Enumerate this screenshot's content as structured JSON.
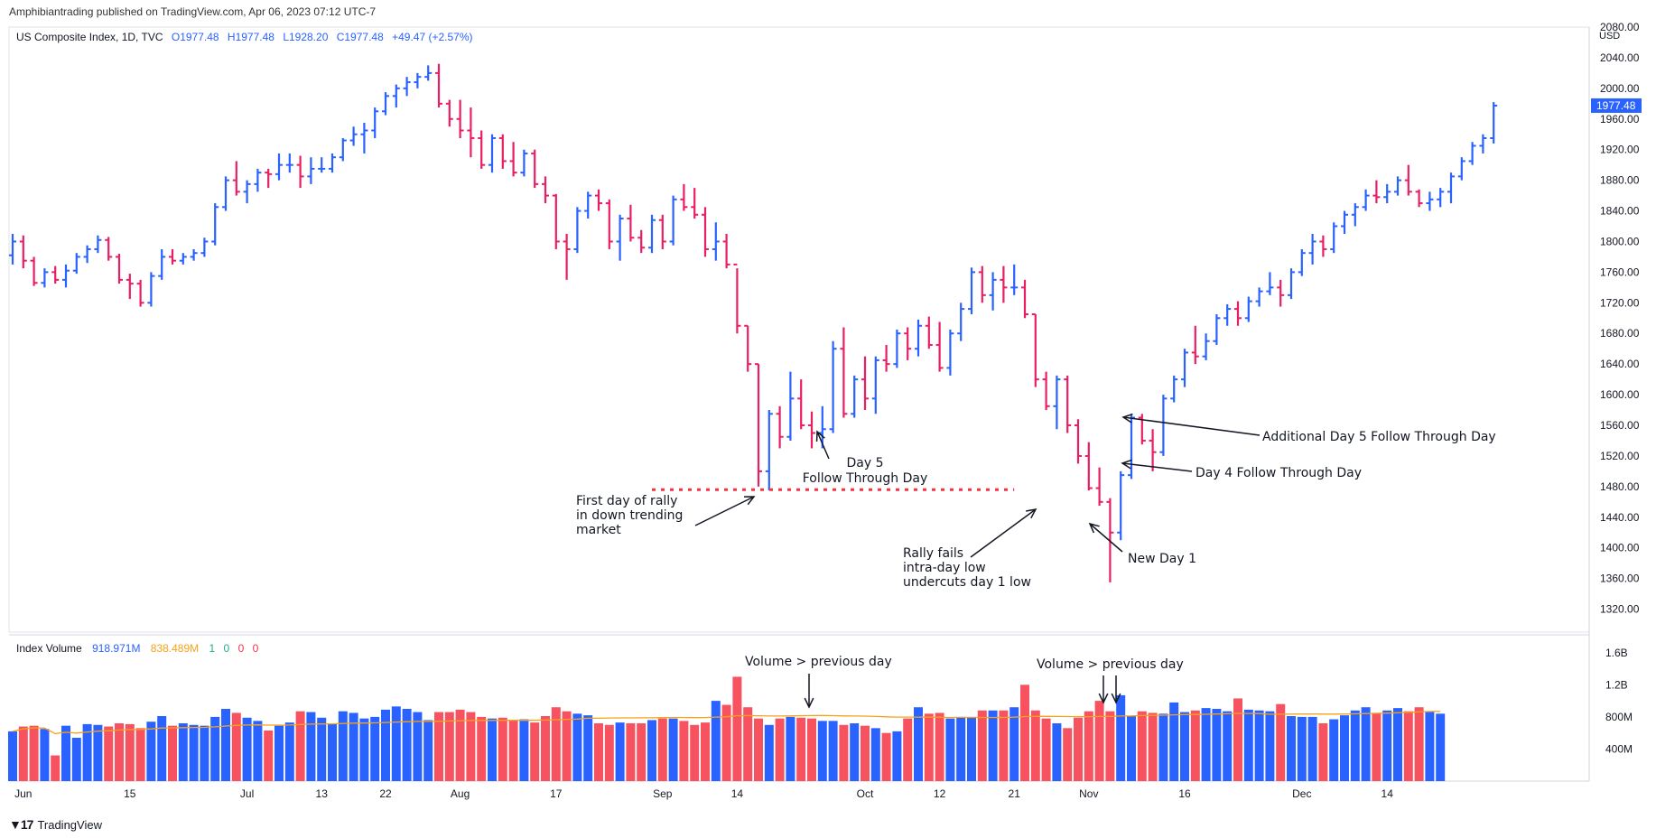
{
  "publisher_line": "Amphibiantrading published on TradingView.com, Apr 06, 2023 07:12 UTC-7",
  "legend": {
    "symbol": "US Composite Index, 1D, TVC",
    "open": "O1977.48",
    "high": "H1977.48",
    "low": "L1928.20",
    "close": "C1977.48",
    "change": "+49.47 (+2.57%)"
  },
  "volume_legend": {
    "name": "Index Volume",
    "value1": "918.971M",
    "value2": "838.489M",
    "v3": "1",
    "v4": "0",
    "v5": "0",
    "v6": "0"
  },
  "currency": "USD",
  "footer": {
    "brand": "TradingView",
    "logo": "tradingview-logo-icon"
  },
  "colors": {
    "up": "#2962ff",
    "down": "#e91e63",
    "vol_up": "#2962ff",
    "vol_down": "#f7525f",
    "ma": "#f7a21b",
    "dots": "#f23645"
  },
  "chart_data": {
    "type": "bar",
    "price_axis": {
      "ylim": [
        1290,
        2080
      ],
      "ticks": [
        2080,
        2040,
        2000,
        1960,
        1920,
        1880,
        1840,
        1800,
        1760,
        1720,
        1680,
        1640,
        1600,
        1560,
        1520,
        1480,
        1440,
        1400,
        1360,
        1320
      ],
      "last_price_label": "1977.48"
    },
    "volume_axis": {
      "ylim": [
        0,
        1800
      ],
      "ticks": [
        "1.6B",
        "1.2B",
        "800M",
        "400M"
      ],
      "tick_values": [
        1600,
        1200,
        800,
        400
      ]
    },
    "x_axis_labels": [
      {
        "label": "Jun",
        "index": 1
      },
      {
        "label": "15",
        "index": 11
      },
      {
        "label": "Jul",
        "index": 22
      },
      {
        "label": "13",
        "index": 29
      },
      {
        "label": "22",
        "index": 35
      },
      {
        "label": "Aug",
        "index": 42
      },
      {
        "label": "17",
        "index": 51
      },
      {
        "label": "Sep",
        "index": 61
      },
      {
        "label": "14",
        "index": 68
      },
      {
        "label": "Oct",
        "index": 80
      },
      {
        "label": "12",
        "index": 87
      },
      {
        "label": "21",
        "index": 94
      },
      {
        "label": "Nov",
        "index": 101
      },
      {
        "label": "16",
        "index": 110
      },
      {
        "label": "Dec",
        "index": 121
      },
      {
        "label": "14",
        "index": 129
      }
    ],
    "ohlc": [
      [
        1782,
        1810,
        1770,
        1800
      ],
      [
        1800,
        1808,
        1765,
        1775
      ],
      [
        1775,
        1780,
        1742,
        1746
      ],
      [
        1746,
        1765,
        1740,
        1760
      ],
      [
        1760,
        1768,
        1745,
        1750
      ],
      [
        1750,
        1770,
        1740,
        1762
      ],
      [
        1762,
        1785,
        1758,
        1780
      ],
      [
        1780,
        1795,
        1772,
        1790
      ],
      [
        1790,
        1808,
        1785,
        1802
      ],
      [
        1802,
        1806,
        1775,
        1780
      ],
      [
        1780,
        1784,
        1745,
        1750
      ],
      [
        1750,
        1758,
        1725,
        1745
      ],
      [
        1745,
        1750,
        1715,
        1720
      ],
      [
        1720,
        1760,
        1715,
        1755
      ],
      [
        1755,
        1790,
        1750,
        1780
      ],
      [
        1780,
        1790,
        1770,
        1775
      ],
      [
        1775,
        1785,
        1770,
        1780
      ],
      [
        1780,
        1790,
        1775,
        1785
      ],
      [
        1785,
        1805,
        1780,
        1800
      ],
      [
        1800,
        1850,
        1795,
        1845
      ],
      [
        1845,
        1885,
        1840,
        1880
      ],
      [
        1880,
        1905,
        1860,
        1865
      ],
      [
        1865,
        1880,
        1850,
        1875
      ],
      [
        1875,
        1895,
        1865,
        1890
      ],
      [
        1890,
        1895,
        1870,
        1888
      ],
      [
        1888,
        1915,
        1880,
        1900
      ],
      [
        1900,
        1915,
        1890,
        1900
      ],
      [
        1900,
        1912,
        1870,
        1885
      ],
      [
        1885,
        1910,
        1875,
        1895
      ],
      [
        1895,
        1910,
        1890,
        1895
      ],
      [
        1895,
        1915,
        1890,
        1910
      ],
      [
        1910,
        1935,
        1905,
        1932
      ],
      [
        1932,
        1950,
        1925,
        1940
      ],
      [
        1940,
        1955,
        1915,
        1945
      ],
      [
        1945,
        1975,
        1935,
        1970
      ],
      [
        1970,
        1995,
        1965,
        1990
      ],
      [
        1990,
        2005,
        1975,
        2000
      ],
      [
        2000,
        2015,
        1990,
        2008
      ],
      [
        2008,
        2020,
        2000,
        2015
      ],
      [
        2015,
        2030,
        2010,
        2020
      ],
      [
        2020,
        2032,
        1975,
        1980
      ],
      [
        1980,
        1985,
        1950,
        1960
      ],
      [
        1960,
        1985,
        1935,
        1945
      ],
      [
        1945,
        1975,
        1910,
        1935
      ],
      [
        1935,
        1945,
        1895,
        1900
      ],
      [
        1900,
        1940,
        1890,
        1935
      ],
      [
        1935,
        1940,
        1895,
        1905
      ],
      [
        1905,
        1930,
        1885,
        1890
      ],
      [
        1890,
        1920,
        1885,
        1915
      ],
      [
        1915,
        1920,
        1870,
        1875
      ],
      [
        1875,
        1885,
        1850,
        1860
      ],
      [
        1860,
        1862,
        1790,
        1800
      ],
      [
        1800,
        1810,
        1750,
        1790
      ],
      [
        1790,
        1845,
        1785,
        1840
      ],
      [
        1840,
        1865,
        1830,
        1860
      ],
      [
        1860,
        1868,
        1840,
        1850
      ],
      [
        1850,
        1855,
        1790,
        1800
      ],
      [
        1800,
        1835,
        1775,
        1830
      ],
      [
        1830,
        1848,
        1800,
        1805
      ],
      [
        1805,
        1815,
        1785,
        1792
      ],
      [
        1792,
        1835,
        1785,
        1828
      ],
      [
        1828,
        1835,
        1790,
        1800
      ],
      [
        1800,
        1860,
        1795,
        1855
      ],
      [
        1855,
        1875,
        1840,
        1845
      ],
      [
        1845,
        1870,
        1830,
        1835
      ],
      [
        1835,
        1845,
        1780,
        1790
      ],
      [
        1790,
        1825,
        1775,
        1800
      ],
      [
        1800,
        1810,
        1765,
        1770
      ],
      [
        1770,
        1765,
        1680,
        1690
      ],
      [
        1690,
        1690,
        1630,
        1640
      ],
      [
        1640,
        1640,
        1480,
        1500
      ],
      [
        1500,
        1580,
        1475,
        1575
      ],
      [
        1575,
        1585,
        1530,
        1545
      ],
      [
        1545,
        1630,
        1540,
        1595
      ],
      [
        1595,
        1620,
        1555,
        1560
      ],
      [
        1560,
        1578,
        1530,
        1550
      ],
      [
        1550,
        1585,
        1530,
        1555
      ],
      [
        1555,
        1670,
        1550,
        1660
      ],
      [
        1660,
        1688,
        1570,
        1575
      ],
      [
        1575,
        1625,
        1570,
        1620
      ],
      [
        1620,
        1650,
        1580,
        1595
      ],
      [
        1595,
        1650,
        1575,
        1645
      ],
      [
        1645,
        1665,
        1630,
        1640
      ],
      [
        1640,
        1685,
        1635,
        1680
      ],
      [
        1680,
        1688,
        1645,
        1660
      ],
      [
        1660,
        1698,
        1650,
        1690
      ],
      [
        1690,
        1702,
        1660,
        1665
      ],
      [
        1665,
        1695,
        1630,
        1635
      ],
      [
        1635,
        1685,
        1625,
        1680
      ],
      [
        1680,
        1720,
        1670,
        1712
      ],
      [
        1712,
        1766,
        1705,
        1760
      ],
      [
        1760,
        1768,
        1720,
        1730
      ],
      [
        1730,
        1760,
        1710,
        1750
      ],
      [
        1750,
        1768,
        1720,
        1740
      ],
      [
        1740,
        1770,
        1730,
        1740
      ],
      [
        1740,
        1750,
        1700,
        1705
      ],
      [
        1705,
        1705,
        1610,
        1620
      ],
      [
        1620,
        1630,
        1580,
        1585
      ],
      [
        1585,
        1625,
        1555,
        1620
      ],
      [
        1620,
        1625,
        1550,
        1560
      ],
      [
        1560,
        1568,
        1510,
        1520
      ],
      [
        1520,
        1538,
        1475,
        1478
      ],
      [
        1478,
        1505,
        1455,
        1460
      ],
      [
        1460,
        1465,
        1355,
        1420
      ],
      [
        1420,
        1500,
        1410,
        1495
      ],
      [
        1495,
        1575,
        1490,
        1570
      ],
      [
        1570,
        1575,
        1535,
        1540
      ],
      [
        1540,
        1555,
        1500,
        1525
      ],
      [
        1525,
        1600,
        1520,
        1595
      ],
      [
        1595,
        1625,
        1590,
        1620
      ],
      [
        1620,
        1660,
        1610,
        1655
      ],
      [
        1655,
        1690,
        1640,
        1650
      ],
      [
        1650,
        1680,
        1645,
        1670
      ],
      [
        1670,
        1705,
        1665,
        1700
      ],
      [
        1700,
        1718,
        1690,
        1712
      ],
      [
        1712,
        1722,
        1690,
        1700
      ],
      [
        1700,
        1728,
        1695,
        1722
      ],
      [
        1722,
        1740,
        1715,
        1735
      ],
      [
        1735,
        1760,
        1730,
        1740
      ],
      [
        1740,
        1750,
        1715,
        1730
      ],
      [
        1730,
        1765,
        1725,
        1760
      ],
      [
        1760,
        1790,
        1755,
        1785
      ],
      [
        1785,
        1810,
        1770,
        1800
      ],
      [
        1800,
        1808,
        1780,
        1790
      ],
      [
        1790,
        1825,
        1785,
        1820
      ],
      [
        1820,
        1840,
        1810,
        1835
      ],
      [
        1835,
        1850,
        1820,
        1845
      ],
      [
        1845,
        1868,
        1840,
        1860
      ],
      [
        1860,
        1880,
        1850,
        1858
      ],
      [
        1858,
        1875,
        1850,
        1865
      ],
      [
        1865,
        1885,
        1860,
        1880
      ],
      [
        1880,
        1900,
        1860,
        1865
      ],
      [
        1865,
        1868,
        1845,
        1850
      ],
      [
        1850,
        1865,
        1840,
        1855
      ],
      [
        1855,
        1870,
        1845,
        1865
      ],
      [
        1865,
        1890,
        1850,
        1885
      ],
      [
        1885,
        1910,
        1880,
        1905
      ],
      [
        1905,
        1930,
        1900,
        1925
      ],
      [
        1925,
        1940,
        1915,
        1935
      ],
      [
        1935,
        1982,
        1928,
        1977.48
      ]
    ],
    "volume": [
      620,
      680,
      690,
      650,
      320,
      690,
      540,
      710,
      700,
      680,
      720,
      710,
      660,
      740,
      810,
      690,
      720,
      700,
      690,
      800,
      900,
      850,
      790,
      750,
      630,
      690,
      730,
      870,
      860,
      790,
      720,
      870,
      850,
      780,
      800,
      890,
      930,
      900,
      860,
      760,
      860,
      860,
      890,
      860,
      800,
      780,
      790,
      760,
      770,
      730,
      810,
      920,
      870,
      840,
      820,
      720,
      700,
      730,
      720,
      720,
      760,
      780,
      780,
      750,
      700,
      730,
      1000,
      950,
      1300,
      920,
      780,
      700,
      780,
      800,
      790,
      780,
      750,
      750,
      700,
      720,
      690,
      660,
      600,
      620,
      780,
      920,
      840,
      850,
      780,
      800,
      800,
      880,
      880,
      880,
      920,
      1200,
      880,
      780,
      720,
      660,
      790,
      870,
      1000,
      870,
      1070,
      810,
      870,
      850,
      840,
      980,
      860,
      880,
      910,
      900,
      870,
      1030,
      890,
      880,
      870,
      960,
      810,
      800,
      800,
      720,
      770,
      820,
      880,
      920,
      840,
      880,
      910,
      870,
      920,
      860,
      840
    ],
    "annotations": [
      {
        "text": [
          "First day of rally",
          "in down trending",
          "market"
        ]
      },
      {
        "text": [
          "Day 5",
          "Follow Through Day"
        ]
      },
      {
        "text": [
          "Rally fails",
          "intra-day low",
          "undercuts day 1 low"
        ]
      },
      {
        "text": [
          "New Day 1"
        ]
      },
      {
        "text": [
          "Day 4 Follow Through Day"
        ]
      },
      {
        "text": [
          "Additional Day 5 Follow Through Day"
        ]
      },
      {
        "text": [
          "Volume > previous day"
        ]
      },
      {
        "text": [
          "Volume > previous day"
        ]
      }
    ],
    "support_line_price": 1476
  }
}
